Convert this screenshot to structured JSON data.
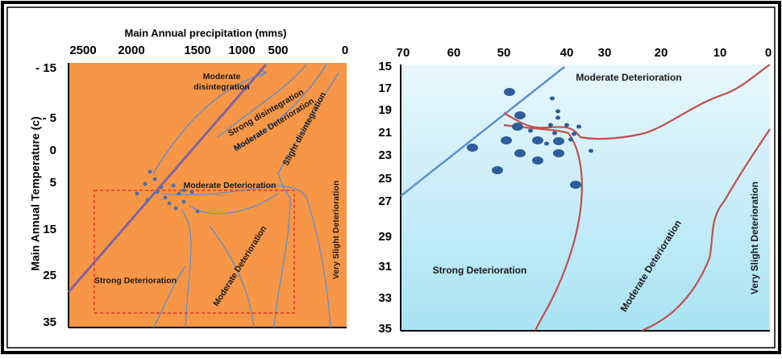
{
  "left": {
    "title": "Main Annual precipitation (mms)",
    "y_label": "Main Annual Temperature (c)",
    "x_ticks": [
      2500,
      2000,
      1500,
      1000,
      500,
      0
    ],
    "y_ticks": [
      "- 15",
      "- 5",
      0,
      5,
      15,
      25,
      35
    ],
    "labels": [
      [
        "Moderate",
        "disintegration"
      ],
      [
        "Strong disintegration"
      ],
      [
        "Moderate Deterioration"
      ],
      [
        "Slight disintegration"
      ],
      [
        "Moderate Deterioration"
      ],
      [
        "Very Slight Deterioration"
      ],
      [
        "Strong Deterioration"
      ],
      [
        "Moderate Deterioration"
      ]
    ]
  },
  "right": {
    "x_ticks": [
      70,
      60,
      50,
      40,
      30,
      20,
      10,
      0
    ],
    "y_ticks": [
      15,
      17,
      19,
      21,
      23,
      25,
      27,
      29,
      31,
      33,
      35
    ],
    "labels": [
      "Moderate Deterioration",
      "Strong Deterioration",
      "Moderate Deterioration",
      "Very Slight Deterioration"
    ]
  }
}
